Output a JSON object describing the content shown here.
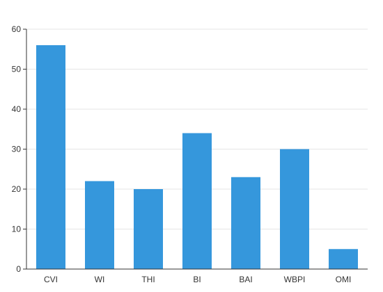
{
  "chart_data": {
    "type": "bar",
    "categories": [
      "CVI",
      "WI",
      "THI",
      "BI",
      "BAI",
      "WBPI",
      "OMI"
    ],
    "values": [
      56,
      22,
      20,
      34,
      23,
      30,
      5
    ],
    "title": "",
    "xlabel": "",
    "ylabel": "",
    "ylim": [
      0,
      60
    ],
    "yticks": [
      0,
      10,
      20,
      30,
      40,
      50,
      60
    ],
    "grid": true,
    "legend": "none",
    "colors": {
      "bar": "#3597dc",
      "grid": "#e6e6e6",
      "axis": "#333333",
      "text": "#333333"
    }
  }
}
